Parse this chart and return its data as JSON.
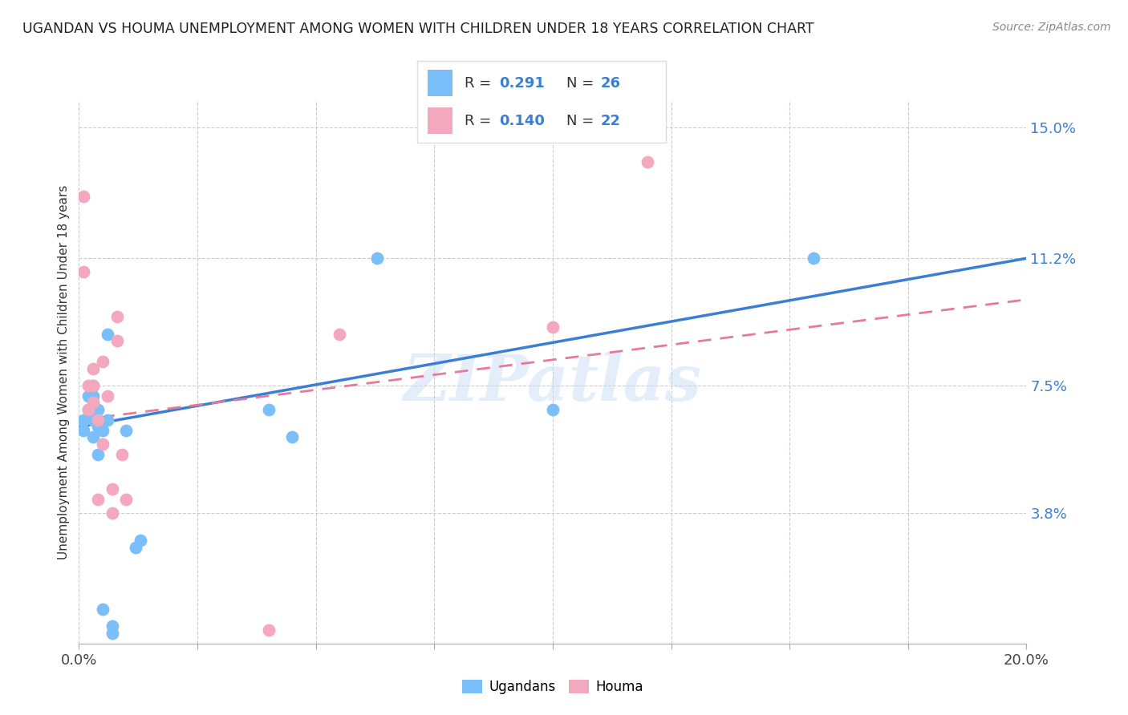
{
  "title": "UGANDAN VS HOUMA UNEMPLOYMENT AMONG WOMEN WITH CHILDREN UNDER 18 YEARS CORRELATION CHART",
  "source": "Source: ZipAtlas.com",
  "ylabel": "Unemployment Among Women with Children Under 18 years",
  "xlim": [
    0.0,
    0.2
  ],
  "ylim": [
    0.0,
    0.158
  ],
  "xtick_positions": [
    0.0,
    0.025,
    0.05,
    0.075,
    0.1,
    0.125,
    0.15,
    0.175,
    0.2
  ],
  "xtick_labels": [
    "0.0%",
    "",
    "",
    "",
    "",
    "",
    "",
    "",
    "20.0%"
  ],
  "ytick_right_vals": [
    0.038,
    0.075,
    0.112,
    0.15
  ],
  "ytick_right_labels": [
    "3.8%",
    "7.5%",
    "11.2%",
    "15.0%"
  ],
  "ugandan_color": "#7bbffa",
  "houma_color": "#f4a8be",
  "ugandan_line_color": "#3a7fd5",
  "houma_line_color": "#e8799a",
  "watermark": "ZIPatlas",
  "legend1_label": "Ugandans",
  "legend2_label": "Houma",
  "legend_r1": "0.291",
  "legend_n1": "26",
  "legend_r2": "0.140",
  "legend_n2": "22",
  "ugandan_x": [
    0.001,
    0.001,
    0.002,
    0.002,
    0.003,
    0.003,
    0.003,
    0.003,
    0.004,
    0.004,
    0.004,
    0.005,
    0.005,
    0.006,
    0.006,
    0.007,
    0.007,
    0.01,
    0.012,
    0.013,
    0.04,
    0.045,
    0.063,
    0.1,
    0.155,
    0.003
  ],
  "ugandan_y": [
    0.062,
    0.065,
    0.068,
    0.072,
    0.06,
    0.065,
    0.068,
    0.072,
    0.055,
    0.063,
    0.068,
    0.01,
    0.062,
    0.09,
    0.065,
    0.003,
    0.005,
    0.062,
    0.028,
    0.03,
    0.068,
    0.06,
    0.112,
    0.068,
    0.112,
    0.075
  ],
  "houma_x": [
    0.001,
    0.002,
    0.002,
    0.003,
    0.003,
    0.003,
    0.004,
    0.004,
    0.005,
    0.005,
    0.006,
    0.007,
    0.007,
    0.008,
    0.008,
    0.009,
    0.01,
    0.04,
    0.055,
    0.1,
    0.12,
    0.001
  ],
  "houma_y": [
    0.13,
    0.068,
    0.075,
    0.07,
    0.075,
    0.08,
    0.042,
    0.065,
    0.058,
    0.082,
    0.072,
    0.038,
    0.045,
    0.088,
    0.095,
    0.055,
    0.042,
    0.004,
    0.09,
    0.092,
    0.14,
    0.108
  ],
  "ug_line_x0": 0.0,
  "ug_line_y0": 0.063,
  "ug_line_x1": 0.2,
  "ug_line_y1": 0.112,
  "ho_line_x0": 0.0,
  "ho_line_y0": 0.065,
  "ho_line_x1": 0.2,
  "ho_line_y1": 0.1
}
